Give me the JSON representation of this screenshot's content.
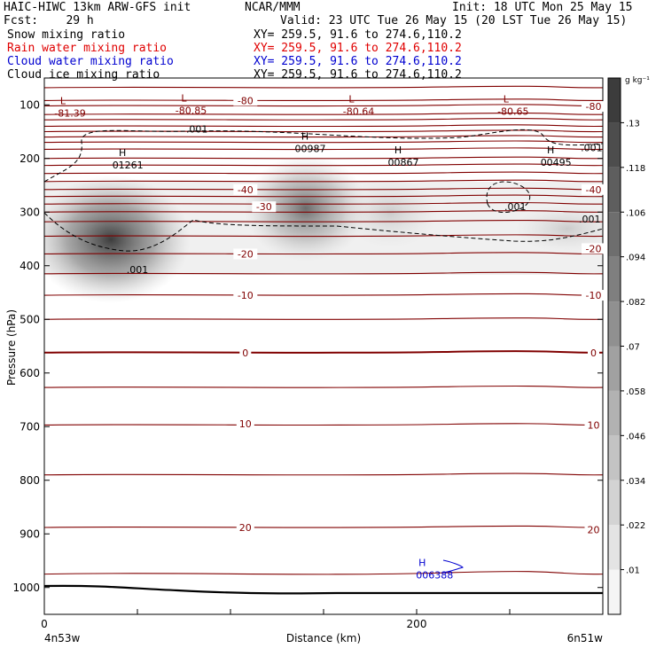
{
  "header": {
    "title_left": "HAIC-HIWC 13km ARW-GFS init",
    "org": "NCAR/MMM",
    "init": "Init: 18 UTC Mon 25 May 15",
    "fcst": "Fcst:    29 h",
    "valid": "Valid: 23 UTC Tue 26 May 15 (20 LST Tue 26 May 15)",
    "fields": [
      {
        "name": "Snow mixing ratio",
        "xy": "XY= 259.5, 91.6 to 274.6,110.2",
        "color": "#000000"
      },
      {
        "name": "Rain water mixing ratio",
        "xy": "XY= 259.5, 91.6 to 274.6,110.2",
        "color": "#e00000"
      },
      {
        "name": "Cloud water mixing ratio",
        "xy": "XY= 259.5, 91.6 to 274.6,110.2",
        "color": "#0000d0"
      },
      {
        "name": "Cloud ice mixing ratio",
        "xy": "XY= 259.5, 91.6 to 274.6,110.2",
        "color": "#000000"
      }
    ]
  },
  "chart_data": {
    "type": "heatmap",
    "ylabel": "Pressure (hPa)",
    "xlabel": "Distance (km)",
    "x_range_km": [
      0,
      300
    ],
    "y_range_hPa": [
      1050,
      50
    ],
    "y_ticks": [
      100,
      200,
      300,
      400,
      500,
      600,
      700,
      800,
      900,
      1000
    ],
    "x_ticks": [
      0,
      200
    ],
    "x_endpoints": [
      "4n53w",
      "6n51w"
    ],
    "colorbar": {
      "unit": "g kg⁻¹",
      "levels": [
        0.01,
        0.022,
        0.034,
        0.046,
        0.058,
        0.07,
        0.082,
        0.094,
        0.106,
        0.118,
        0.13
      ]
    },
    "snow_maxima": [
      {
        "label": "H",
        "value": "01261",
        "x_km": 42,
        "p_hPa": 205
      },
      {
        "label": "H",
        "value": "00987",
        "x_km": 140,
        "p_hPa": 175
      },
      {
        "label": "H",
        "value": "00867",
        "x_km": 190,
        "p_hPa": 200
      },
      {
        "label": "H",
        "value": "00495",
        "x_km": 272,
        "p_hPa": 200
      }
    ],
    "temperature_minima": [
      {
        "label": "L",
        "value": "-81.39",
        "x_km": 10,
        "p_hPa": 105
      },
      {
        "label": "L",
        "value": "-80.85",
        "x_km": 75,
        "p_hPa": 100
      },
      {
        "label": "L",
        "value": "-80.64",
        "x_km": 165,
        "p_hPa": 102
      },
      {
        "label": "L",
        "value": "-80.65",
        "x_km": 248,
        "p_hPa": 102
      }
    ],
    "cloud_water_max": {
      "label": "H",
      "value": "006388",
      "x_km": 203,
      "p_hPa": 970
    },
    "temperature_contour_labels": [
      {
        "value": "-80",
        "x_km": 108,
        "p_hPa": 92
      },
      {
        "value": "-80",
        "x_km": 295,
        "p_hPa": 103
      },
      {
        "value": "-40",
        "x_km": 108,
        "p_hPa": 258
      },
      {
        "value": "-40",
        "x_km": 295,
        "p_hPa": 258
      },
      {
        "value": "-30",
        "x_km": 118,
        "p_hPa": 290
      },
      {
        "value": "-20",
        "x_km": 108,
        "p_hPa": 378
      },
      {
        "value": "-20",
        "x_km": 295,
        "p_hPa": 368
      },
      {
        "value": "-10",
        "x_km": 108,
        "p_hPa": 455
      },
      {
        "value": "-10",
        "x_km": 295,
        "p_hPa": 455
      },
      {
        "value": "0",
        "x_km": 108,
        "p_hPa": 562
      },
      {
        "value": "0",
        "x_km": 295,
        "p_hPa": 562
      },
      {
        "value": "10",
        "x_km": 108,
        "p_hPa": 695
      },
      {
        "value": "10",
        "x_km": 295,
        "p_hPa": 697
      },
      {
        "value": "20",
        "x_km": 108,
        "p_hPa": 888
      },
      {
        "value": "20",
        "x_km": 295,
        "p_hPa": 892
      }
    ],
    "ice_contour_labels": [
      {
        "value": ".001",
        "x_km": 82,
        "p_hPa": 145
      },
      {
        "value": ".001",
        "x_km": 294,
        "p_hPa": 180
      },
      {
        "value": ".001",
        "x_km": 253,
        "p_hPa": 290
      },
      {
        "value": ".001",
        "x_km": 293,
        "p_hPa": 313
      },
      {
        "value": ".001",
        "x_km": 50,
        "p_hPa": 407
      }
    ]
  }
}
